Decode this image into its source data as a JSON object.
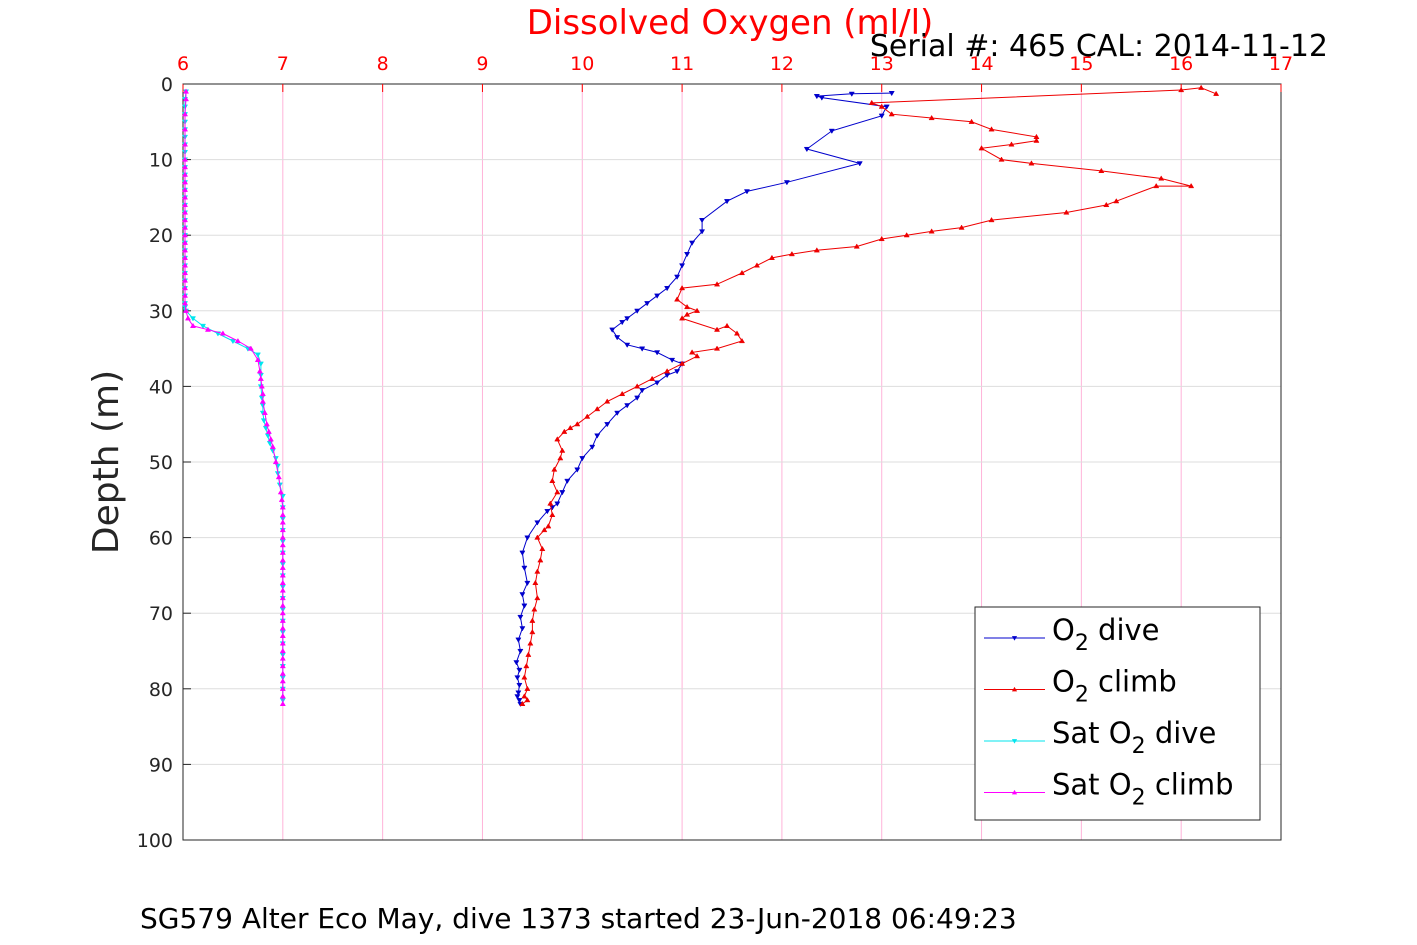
{
  "chart_data": {
    "type": "line",
    "title": "Dissolved Oxygen (ml/l)",
    "subtitle": "Serial #: 465  CAL: 2014-11-12",
    "footer": "SG579 Alter Eco May, dive 1373 started 23-Jun-2018 06:49:23",
    "xlabel": "",
    "ylabel": "Depth (m)",
    "xlim": [
      6,
      17
    ],
    "ylim": [
      0,
      100
    ],
    "y_reversed": true,
    "x_axis_position": "top",
    "x_ticks": [
      "6",
      "7",
      "8",
      "9",
      "10",
      "11",
      "12",
      "13",
      "14",
      "15",
      "16",
      "17"
    ],
    "y_ticks": [
      "0",
      "10",
      "20",
      "30",
      "40",
      "50",
      "60",
      "70",
      "80",
      "90",
      "100"
    ],
    "grid": true,
    "legend_position": "bottom-right",
    "colors": {
      "title": "#ff0000",
      "x_axis": "#ff0000",
      "y_axis": "#262626",
      "grid_x": "#ffb3d9",
      "grid_y": "#dddddd",
      "o2_dive": "#0000cc",
      "o2_climb": "#ee0000",
      "sat_dive": "#00e5ee",
      "sat_climb": "#ff00ff"
    },
    "series": [
      {
        "name": "O2 dive",
        "legend_main": "O",
        "legend_sub": "2",
        "legend_rest": " dive",
        "marker": "triangle-down",
        "color_key": "o2_dive",
        "x": [
          13.1,
          12.7,
          12.35,
          12.4,
          13.05,
          13.0,
          12.5,
          12.25,
          12.78,
          12.05,
          11.65,
          11.45,
          11.2,
          11.2,
          11.1,
          11.05,
          11.0,
          10.95,
          10.85,
          10.75,
          10.65,
          10.55,
          10.45,
          10.4,
          10.3,
          10.35,
          10.45,
          10.6,
          10.75,
          10.9,
          11.0,
          10.95,
          10.85,
          10.75,
          10.6,
          10.55,
          10.45,
          10.35,
          10.25,
          10.15,
          10.1,
          10.0,
          9.95,
          9.85,
          9.8,
          9.75,
          9.7,
          9.65,
          9.55,
          9.45,
          9.4,
          9.42,
          9.45,
          9.4,
          9.42,
          9.38,
          9.4,
          9.36,
          9.38,
          9.34,
          9.37,
          9.35,
          9.37,
          9.36,
          9.35,
          9.37,
          9.38
        ],
        "y": [
          1.2,
          1.3,
          1.6,
          1.8,
          3.0,
          4.2,
          6.2,
          8.6,
          10.5,
          13.0,
          14.2,
          15.5,
          18.0,
          19.5,
          21.0,
          22.5,
          24.0,
          25.5,
          27.0,
          28.0,
          29.0,
          30.0,
          31.0,
          31.5,
          32.5,
          33.5,
          34.5,
          35.0,
          35.5,
          36.5,
          37.0,
          38.0,
          38.5,
          39.5,
          40.5,
          41.5,
          42.5,
          43.5,
          45.0,
          46.5,
          48.0,
          49.5,
          51.0,
          52.5,
          54.0,
          55.5,
          56.0,
          56.5,
          58.0,
          60.0,
          62.0,
          64.0,
          66.0,
          67.5,
          69.0,
          70.5,
          72.0,
          73.5,
          75.0,
          76.5,
          77.5,
          78.5,
          79.5,
          80.5,
          81.0,
          81.5,
          82.0
        ]
      },
      {
        "name": "O2 climb",
        "legend_main": "O",
        "legend_sub": "2",
        "legend_rest": " climb",
        "marker": "triangle-up",
        "color_key": "o2_climb",
        "x": [
          9.4,
          9.45,
          9.42,
          9.45,
          9.42,
          9.44,
          9.46,
          9.48,
          9.5,
          9.5,
          9.52,
          9.55,
          9.53,
          9.55,
          9.58,
          9.6,
          9.55,
          9.62,
          9.66,
          9.7,
          9.68,
          9.75,
          9.7,
          9.72,
          9.78,
          9.8,
          9.75,
          9.82,
          9.88,
          9.95,
          10.05,
          10.15,
          10.25,
          10.4,
          10.55,
          10.7,
          10.85,
          11.0,
          11.15,
          11.1,
          11.35,
          11.6,
          11.55,
          11.45,
          11.35,
          11.0,
          11.05,
          11.15,
          11.05,
          10.95,
          11.0,
          11.35,
          11.6,
          11.75,
          11.9,
          12.1,
          12.35,
          12.75,
          13.0,
          13.25,
          13.5,
          13.8,
          14.1,
          14.85,
          15.25,
          15.35,
          15.75,
          16.1,
          15.8,
          15.2,
          14.5,
          14.2,
          14.0,
          14.3,
          14.55,
          14.55,
          14.1,
          13.9,
          13.5,
          13.1,
          13.0,
          12.9,
          16.0,
          16.2,
          16.35
        ],
        "y": [
          82.0,
          81.5,
          81.0,
          80.0,
          78.5,
          77.0,
          75.5,
          74.0,
          72.5,
          71.0,
          69.5,
          68.0,
          66.0,
          64.5,
          63.0,
          61.5,
          60.0,
          59.0,
          58.5,
          57.0,
          55.5,
          54.0,
          52.5,
          51.0,
          49.5,
          48.5,
          47.0,
          46.0,
          45.5,
          45.0,
          44.0,
          43.0,
          42.0,
          41.0,
          40.0,
          39.0,
          38.0,
          37.0,
          36.0,
          35.5,
          35.0,
          34.0,
          33.0,
          32.0,
          32.5,
          31.0,
          30.5,
          30.0,
          29.5,
          28.5,
          27.0,
          26.5,
          25.0,
          24.0,
          23.0,
          22.5,
          22.0,
          21.5,
          20.5,
          20.0,
          19.5,
          19.0,
          18.0,
          17.0,
          16.0,
          15.5,
          13.5,
          13.5,
          12.5,
          11.5,
          10.5,
          10.0,
          8.5,
          8.0,
          7.5,
          7.0,
          6.0,
          5.0,
          4.5,
          4.0,
          3.0,
          2.5,
          0.8,
          0.5,
          1.3
        ]
      },
      {
        "name": "Sat O2 dive",
        "legend_main": "Sat O",
        "legend_sub": "2",
        "legend_rest": " dive",
        "marker": "triangle-down",
        "color_key": "sat_dive",
        "x": [
          6.03,
          6.02,
          6.02,
          6.02,
          6.02,
          6.02,
          6.02,
          6.02,
          6.02,
          6.02,
          6.02,
          6.02,
          6.02,
          6.02,
          6.02,
          6.02,
          6.02,
          6.02,
          6.02,
          6.02,
          6.02,
          6.02,
          6.02,
          6.02,
          6.02,
          6.02,
          6.02,
          6.02,
          6.02,
          6.02,
          6.03,
          6.1,
          6.2,
          6.35,
          6.5,
          6.65,
          6.75,
          6.78,
          6.78,
          6.78,
          6.79,
          6.8,
          6.8,
          6.81,
          6.83,
          6.85,
          6.87,
          6.9,
          6.93,
          6.95,
          6.95,
          6.97,
          7.0,
          7.0,
          7.0,
          7.0,
          7.0,
          7.0,
          7.0,
          7.0,
          7.0,
          7.0,
          7.0,
          7.0,
          7.0,
          7.0,
          7.0,
          7.0,
          7.0,
          7.0,
          7.0
        ],
        "y": [
          1,
          2,
          3,
          4,
          5,
          6,
          7,
          8,
          9,
          10,
          11,
          12,
          13,
          14,
          15,
          16,
          17,
          18,
          19,
          20,
          21,
          22,
          23,
          24,
          25,
          26,
          27,
          28,
          29,
          29.5,
          30.0,
          31.0,
          32.0,
          33.0,
          34.0,
          35.0,
          35.8,
          37.0,
          38.5,
          40.0,
          41.5,
          42.5,
          43.5,
          44.5,
          45.5,
          46.5,
          47.5,
          48.5,
          49.5,
          50.5,
          51.5,
          53.0,
          54.5,
          56.0,
          57.5,
          59.0,
          60.5,
          62.0,
          63.5,
          65.0,
          66.5,
          68.0,
          69.5,
          71.0,
          72.5,
          74.0,
          75.5,
          77.0,
          78.5,
          80.0,
          81.5
        ]
      },
      {
        "name": "Sat O2 climb",
        "legend_main": "Sat O",
        "legend_sub": "2",
        "legend_rest": " climb",
        "marker": "triangle-up",
        "color_key": "sat_climb",
        "x": [
          7.0,
          7.0,
          7.0,
          7.0,
          7.0,
          7.0,
          7.0,
          7.0,
          7.0,
          7.0,
          7.0,
          7.0,
          7.0,
          7.0,
          7.0,
          7.0,
          7.0,
          7.0,
          7.0,
          7.0,
          7.0,
          7.0,
          7.0,
          7.0,
          7.0,
          7.0,
          7.0,
          6.99,
          6.98,
          6.96,
          6.93,
          6.9,
          6.88,
          6.86,
          6.84,
          6.82,
          6.8,
          6.8,
          6.79,
          6.78,
          6.77,
          6.75,
          6.68,
          6.55,
          6.4,
          6.25,
          6.1,
          6.05,
          6.03,
          6.02,
          6.02,
          6.02,
          6.02,
          6.02,
          6.02,
          6.02,
          6.02,
          6.02,
          6.02,
          6.02,
          6.02,
          6.02,
          6.02,
          6.02,
          6.02,
          6.02,
          6.02,
          6.02,
          6.02,
          6.02,
          6.02,
          6.02,
          6.03,
          6.03
        ],
        "y": [
          82.0,
          81.0,
          80.0,
          79.0,
          78.0,
          77.0,
          76.0,
          75.0,
          74.0,
          73.0,
          72.0,
          71.0,
          70.0,
          69.0,
          68.0,
          67.0,
          66.0,
          65.0,
          64.0,
          63.0,
          62.0,
          61.0,
          60.0,
          59.0,
          58.0,
          57.0,
          56.0,
          55.0,
          54.0,
          52.0,
          50.0,
          48.0,
          47.0,
          46.0,
          45.0,
          43.5,
          42.0,
          41.0,
          40.0,
          39.0,
          38.0,
          36.5,
          35.0,
          34.0,
          33.0,
          32.5,
          32.0,
          31.0,
          30.0,
          29.0,
          28.0,
          27.0,
          26.0,
          25.0,
          24.0,
          23.0,
          22.0,
          21.0,
          20.0,
          19.0,
          18.0,
          17.0,
          16.0,
          15.0,
          14.0,
          13.0,
          12.0,
          11.0,
          10.0,
          8.0,
          6.0,
          4.0,
          2.0,
          1.0
        ]
      }
    ]
  }
}
